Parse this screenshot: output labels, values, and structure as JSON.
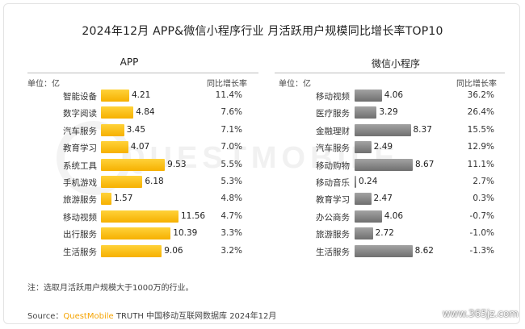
{
  "title": "2024年12月 APP&微信小程序行业 月活跃用户规模同比增长率TOP10",
  "note": "注：选取月活跃用户规模大于1000万的行业。",
  "source": {
    "prefix": "Source：",
    "brand": "QuestMobile",
    "rest": " TRUTH 中国移动互联网数据库 2024年12月"
  },
  "watermark": "QUESTMOBILE",
  "site_mark": "www.365jz.com",
  "colors": {
    "app_bar": "#f8bd0e",
    "mini_bar": "#7f7f7f",
    "brand": "#f5a300"
  },
  "chart_data": [
    {
      "type": "bar",
      "orientation": "horizontal",
      "title": "APP",
      "unit_label": "单位：亿",
      "growth_header": "同比增长率",
      "categories": [
        "智能设备",
        "数字阅读",
        "汽车服务",
        "教育学习",
        "系统工具",
        "手机游戏",
        "旅游服务",
        "移动视频",
        "出行服务",
        "生活服务"
      ],
      "values": [
        4.21,
        4.84,
        3.45,
        4.07,
        9.53,
        6.18,
        1.57,
        11.56,
        10.39,
        9.06
      ],
      "value_labels": [
        "4.21",
        "4.84",
        "3.45",
        "4.07",
        "9.53",
        "6.18",
        "1.57",
        "11.56",
        "10.39",
        "9.06"
      ],
      "growth": [
        "11.4%",
        "7.6%",
        "7.1%",
        "7.0%",
        "5.5%",
        "5.3%",
        "4.8%",
        "4.7%",
        "3.3%",
        "3.2%"
      ]
    },
    {
      "type": "bar",
      "orientation": "horizontal",
      "title": "微信小程序",
      "unit_label": "单位：亿",
      "growth_header": "同比增长率",
      "categories": [
        "移动视频",
        "医疗服务",
        "金融理财",
        "汽车服务",
        "移动购物",
        "移动音乐",
        "教育学习",
        "办公商务",
        "旅游服务",
        "生活服务"
      ],
      "values": [
        4.06,
        3.29,
        8.37,
        2.49,
        8.67,
        0.24,
        2.47,
        4.06,
        2.72,
        8.62
      ],
      "value_labels": [
        "4.06",
        "3.29",
        "8.37",
        "2.49",
        "8.67",
        "0.24",
        "2.47",
        "4.06",
        "2.72",
        "8.62"
      ],
      "growth": [
        "36.2%",
        "26.4%",
        "15.5%",
        "12.9%",
        "11.1%",
        "2.7%",
        "0.3%",
        "-0.7%",
        "-1.0%",
        "-1.3%"
      ]
    }
  ]
}
